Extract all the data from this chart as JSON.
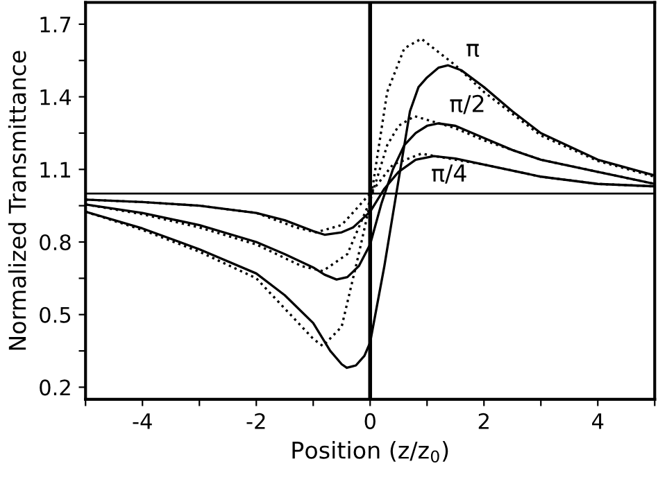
{
  "chart_data": {
    "type": "line",
    "xlabel": "Position (z/z$_{0}$)",
    "ylabel": "Normalized Transmittance",
    "xlim": [
      -5,
      5
    ],
    "ylim": [
      0.15,
      1.79
    ],
    "xticks": [
      {
        "value": -5,
        "label": null
      },
      -4,
      {
        "value": -3,
        "label": null
      },
      -2,
      {
        "value": -1,
        "label": null
      },
      0,
      {
        "value": 1,
        "label": null
      },
      2,
      {
        "value": 3,
        "label": null
      },
      4,
      {
        "value": 5,
        "label": null
      }
    ],
    "yticks": [
      0.2,
      {
        "value": 0.35,
        "label": null
      },
      0.5,
      {
        "value": 0.65,
        "label": null
      },
      0.8,
      {
        "value": 0.95,
        "label": null
      },
      1.1,
      {
        "value": 1.25,
        "label": null
      },
      1.4,
      {
        "value": 1.55,
        "label": null
      },
      1.7
    ],
    "grid": false,
    "legend": false,
    "marker": "none",
    "series": [
      {
        "color": "#000000",
        "line_style": "solid",
        "x": [
          -5,
          -4,
          -3,
          -2,
          -1.5,
          -1,
          -0.7,
          -0.5,
          -0.41,
          -0.25,
          -0.1,
          0,
          0.25,
          0.46,
          0.7,
          0.85,
          1.0,
          1.2,
          1.37,
          1.6,
          2,
          2.5,
          3,
          4,
          5
        ],
        "values": [
          0.925,
          0.856,
          0.77,
          0.67,
          0.58,
          0.465,
          0.35,
          0.295,
          0.28,
          0.29,
          0.33,
          0.385,
          0.7,
          1.0,
          1.34,
          1.44,
          1.48,
          1.52,
          1.53,
          1.51,
          1.44,
          1.34,
          1.25,
          1.14,
          1.075
        ]
      },
      {
        "color": "#000000",
        "line_style": "dotted",
        "x": [
          -5,
          -4,
          -3,
          -2,
          -1,
          -0.83,
          -0.5,
          -0.2,
          0,
          0.3,
          0.6,
          0.9,
          1.5,
          2,
          3,
          4,
          5
        ],
        "values": [
          0.925,
          0.85,
          0.76,
          0.65,
          0.4,
          0.37,
          0.45,
          0.75,
          0.96,
          1.42,
          1.6,
          1.64,
          1.53,
          1.42,
          1.24,
          1.135,
          1.07
        ]
      },
      {
        "color": "#000000",
        "line_style": "solid",
        "x": [
          -5,
          -4,
          -3,
          -2,
          -1.5,
          -1,
          -0.8,
          -0.59,
          -0.4,
          -0.2,
          0,
          0.2,
          0.4,
          0.6,
          0.8,
          1.0,
          1.2,
          1.5,
          2,
          2.5,
          3,
          4,
          5
        ],
        "values": [
          0.955,
          0.92,
          0.87,
          0.8,
          0.75,
          0.695,
          0.665,
          0.645,
          0.655,
          0.7,
          0.79,
          0.96,
          1.1,
          1.2,
          1.25,
          1.28,
          1.29,
          1.28,
          1.23,
          1.18,
          1.14,
          1.09,
          1.04
        ]
      },
      {
        "color": "#000000",
        "line_style": "dotted",
        "x": [
          -5,
          -4,
          -3,
          -2,
          -1.2,
          -0.83,
          -0.4,
          0,
          0.3,
          0.5,
          0.78,
          1.5,
          2,
          3,
          4,
          5
        ],
        "values": [
          0.955,
          0.915,
          0.86,
          0.79,
          0.7,
          0.68,
          0.75,
          0.97,
          1.2,
          1.28,
          1.32,
          1.27,
          1.22,
          1.14,
          1.09,
          1.04
        ]
      },
      {
        "color": "#000000",
        "line_style": "solid",
        "x": [
          -5,
          -4,
          -3,
          -2,
          -1.5,
          -1,
          -0.8,
          -0.5,
          -0.3,
          0,
          0.25,
          0.5,
          0.8,
          1.12,
          1.5,
          2,
          3,
          4,
          5
        ],
        "values": [
          0.975,
          0.965,
          0.95,
          0.92,
          0.89,
          0.845,
          0.83,
          0.84,
          0.86,
          0.925,
          1.02,
          1.09,
          1.14,
          1.155,
          1.145,
          1.12,
          1.07,
          1.04,
          1.03
        ]
      },
      {
        "color": "#000000",
        "line_style": "dotted",
        "x": [
          -5,
          -4,
          -3,
          -2,
          -1.3,
          -0.95,
          -0.5,
          0,
          0.4,
          0.9,
          1.5,
          2,
          3,
          4,
          5
        ],
        "values": [
          0.975,
          0.965,
          0.95,
          0.92,
          0.86,
          0.84,
          0.87,
          1.0,
          1.12,
          1.165,
          1.14,
          1.12,
          1.07,
          1.04,
          1.03
        ]
      }
    ],
    "ref_lines": [
      {
        "axis": "x",
        "value": 0,
        "color": "#000000",
        "line_style": "solid"
      },
      {
        "axis": "y",
        "value": 1,
        "color": "#000000",
        "line_style": "solid"
      }
    ],
    "annotations": [
      "π",
      "π/2",
      "π/4"
    ]
  }
}
